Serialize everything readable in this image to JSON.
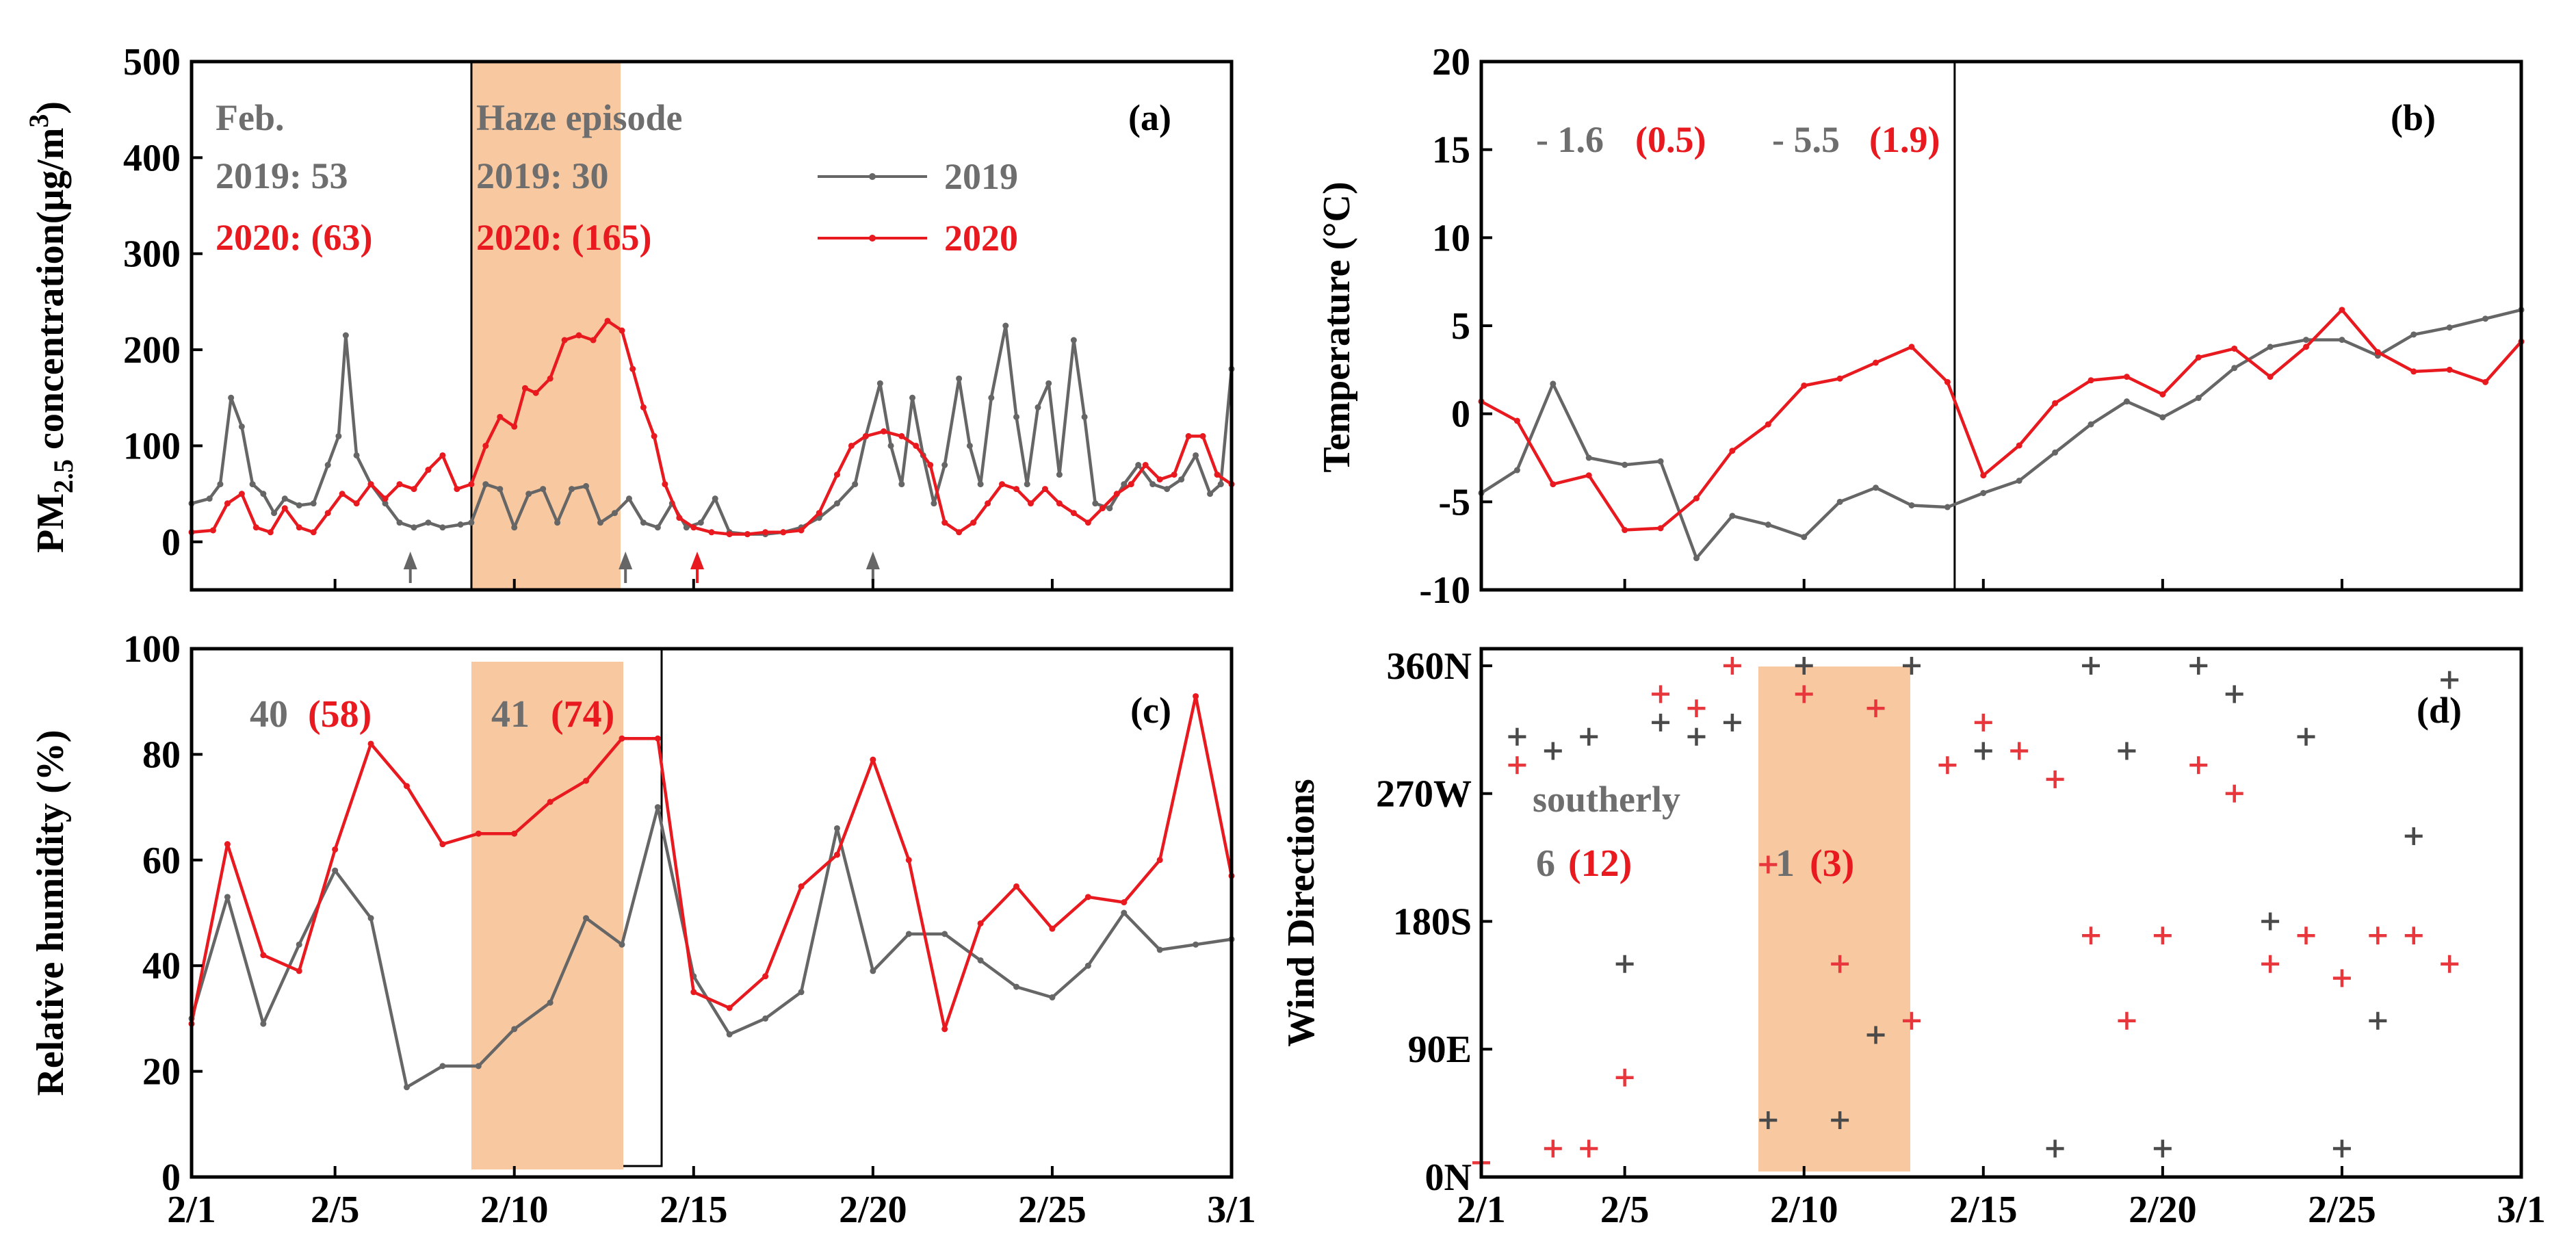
{
  "colors": {
    "y2019": "#666666",
    "y2020": "#e8191f",
    "haze": "#f8c9a0",
    "text2019": "#6e6e6e",
    "text2020": "#e8191f",
    "axis": "#000000"
  },
  "legend": {
    "y2019": "2019",
    "y2020": "2020"
  },
  "x_ticks": [
    {
      "label": "2/1",
      "day": 1
    },
    {
      "label": "2/5",
      "day": 5
    },
    {
      "label": "2/10",
      "day": 10
    },
    {
      "label": "2/15",
      "day": 15
    },
    {
      "label": "2/20",
      "day": 20
    },
    {
      "label": "2/25",
      "day": 25
    },
    {
      "label": "3/1",
      "day": 30
    }
  ],
  "chart_data": [
    {
      "id": "a",
      "type": "line",
      "panel_label": "(a)",
      "ylabel": "PM2.5 concentration(μg/m3)",
      "ylim": [
        -50,
        500
      ],
      "yticks": [
        0,
        100,
        200,
        300,
        400,
        500
      ],
      "xlim": [
        1,
        30
      ],
      "haze_window": [
        8.8,
        13.2
      ],
      "annotations": {
        "feb_title": "Feb.",
        "feb_2019": "2019: 53",
        "feb_2020": "2020: (63)",
        "haze_title": "Haze episode",
        "haze_2019": "2019: 30",
        "haze_2020": "2020: (165)"
      },
      "arrows": [
        {
          "day": 7.1,
          "series": "2019"
        },
        {
          "day": 13.1,
          "series": "2019"
        },
        {
          "day": 15.1,
          "series": "2020"
        },
        {
          "day": 20.0,
          "series": "2019"
        }
      ],
      "series": [
        {
          "name": "2019",
          "points": [
            [
              1,
              40
            ],
            [
              1.5,
              45
            ],
            [
              1.8,
              60
            ],
            [
              2.1,
              150
            ],
            [
              2.4,
              120
            ],
            [
              2.7,
              60
            ],
            [
              3.0,
              50
            ],
            [
              3.3,
              30
            ],
            [
              3.6,
              45
            ],
            [
              4.0,
              38
            ],
            [
              4.4,
              40
            ],
            [
              4.8,
              80
            ],
            [
              5.1,
              110
            ],
            [
              5.3,
              215
            ],
            [
              5.6,
              90
            ],
            [
              6.0,
              60
            ],
            [
              6.4,
              40
            ],
            [
              6.8,
              20
            ],
            [
              7.2,
              15
            ],
            [
              7.6,
              20
            ],
            [
              8.0,
              15
            ],
            [
              8.5,
              18
            ],
            [
              8.8,
              20
            ],
            [
              9.2,
              60
            ],
            [
              9.6,
              55
            ],
            [
              10.0,
              15
            ],
            [
              10.4,
              50
            ],
            [
              10.8,
              55
            ],
            [
              11.2,
              20
            ],
            [
              11.6,
              55
            ],
            [
              12.0,
              58
            ],
            [
              12.4,
              20
            ],
            [
              12.8,
              30
            ],
            [
              13.2,
              45
            ],
            [
              13.6,
              20
            ],
            [
              14.0,
              15
            ],
            [
              14.4,
              40
            ],
            [
              14.8,
              15
            ],
            [
              15.2,
              20
            ],
            [
              15.6,
              45
            ],
            [
              16.0,
              10
            ],
            [
              16.5,
              8
            ],
            [
              17.0,
              8
            ],
            [
              17.5,
              10
            ],
            [
              18.0,
              15
            ],
            [
              18.5,
              25
            ],
            [
              19.0,
              40
            ],
            [
              19.5,
              60
            ],
            [
              19.8,
              110
            ],
            [
              20.2,
              165
            ],
            [
              20.5,
              100
            ],
            [
              20.8,
              60
            ],
            [
              21.1,
              150
            ],
            [
              21.4,
              90
            ],
            [
              21.7,
              40
            ],
            [
              22.0,
              80
            ],
            [
              22.4,
              170
            ],
            [
              22.7,
              100
            ],
            [
              23.0,
              60
            ],
            [
              23.3,
              150
            ],
            [
              23.7,
              225
            ],
            [
              24.0,
              130
            ],
            [
              24.3,
              60
            ],
            [
              24.6,
              140
            ],
            [
              24.9,
              165
            ],
            [
              25.2,
              70
            ],
            [
              25.6,
              210
            ],
            [
              25.9,
              130
            ],
            [
              26.2,
              40
            ],
            [
              26.6,
              35
            ],
            [
              27.0,
              60
            ],
            [
              27.4,
              80
            ],
            [
              27.8,
              60
            ],
            [
              28.2,
              55
            ],
            [
              28.6,
              65
            ],
            [
              29.0,
              90
            ],
            [
              29.4,
              50
            ],
            [
              29.7,
              60
            ],
            [
              30,
              180
            ]
          ]
        },
        {
          "name": "2020",
          "points": [
            [
              1,
              10
            ],
            [
              1.6,
              12
            ],
            [
              2.0,
              40
            ],
            [
              2.4,
              50
            ],
            [
              2.8,
              15
            ],
            [
              3.2,
              10
            ],
            [
              3.6,
              35
            ],
            [
              4.0,
              15
            ],
            [
              4.4,
              10
            ],
            [
              4.8,
              30
            ],
            [
              5.2,
              50
            ],
            [
              5.6,
              40
            ],
            [
              6.0,
              60
            ],
            [
              6.4,
              45
            ],
            [
              6.8,
              60
            ],
            [
              7.2,
              55
            ],
            [
              7.6,
              75
            ],
            [
              8.0,
              90
            ],
            [
              8.4,
              55
            ],
            [
              8.8,
              60
            ],
            [
              9.2,
              100
            ],
            [
              9.6,
              130
            ],
            [
              10.0,
              120
            ],
            [
              10.3,
              160
            ],
            [
              10.6,
              155
            ],
            [
              11.0,
              170
            ],
            [
              11.4,
              210
            ],
            [
              11.8,
              215
            ],
            [
              12.2,
              210
            ],
            [
              12.6,
              230
            ],
            [
              13.0,
              220
            ],
            [
              13.3,
              180
            ],
            [
              13.6,
              140
            ],
            [
              13.9,
              110
            ],
            [
              14.2,
              60
            ],
            [
              14.6,
              25
            ],
            [
              15.0,
              15
            ],
            [
              15.5,
              10
            ],
            [
              16.0,
              8
            ],
            [
              16.5,
              8
            ],
            [
              17.0,
              10
            ],
            [
              17.5,
              10
            ],
            [
              18.0,
              12
            ],
            [
              18.5,
              30
            ],
            [
              19.0,
              70
            ],
            [
              19.4,
              100
            ],
            [
              19.8,
              110
            ],
            [
              20.3,
              115
            ],
            [
              20.8,
              110
            ],
            [
              21.2,
              100
            ],
            [
              21.6,
              80
            ],
            [
              22.0,
              20
            ],
            [
              22.4,
              10
            ],
            [
              22.8,
              20
            ],
            [
              23.2,
              40
            ],
            [
              23.6,
              60
            ],
            [
              24.0,
              55
            ],
            [
              24.4,
              40
            ],
            [
              24.8,
              55
            ],
            [
              25.2,
              40
            ],
            [
              25.6,
              30
            ],
            [
              26.0,
              20
            ],
            [
              26.4,
              35
            ],
            [
              26.8,
              50
            ],
            [
              27.2,
              60
            ],
            [
              27.6,
              80
            ],
            [
              28.0,
              65
            ],
            [
              28.4,
              70
            ],
            [
              28.8,
              110
            ],
            [
              29.2,
              110
            ],
            [
              29.6,
              70
            ],
            [
              30,
              60
            ]
          ]
        }
      ]
    },
    {
      "id": "b",
      "type": "line",
      "panel_label": "(b)",
      "ylabel": "Temperature (°C)",
      "ylim": [
        -10,
        20
      ],
      "yticks": [
        -10,
        -5,
        0,
        5,
        10,
        15,
        20
      ],
      "xlim": [
        1,
        30
      ],
      "vline_day": 14.2,
      "annotations": {
        "pre_2019": "- 1.6",
        "pre_2020": "(0.5)",
        "post_2019": "- 5.5",
        "post_2020": "(1.9)"
      },
      "series": [
        {
          "name": "2019",
          "values": [
            -4.5,
            -3.2,
            1.7,
            -2.5,
            -2.9,
            -2.7,
            -8.2,
            -5.8,
            -6.3,
            -7.0,
            -5.0,
            -4.2,
            -5.2,
            -5.3,
            -4.5,
            -3.8,
            -2.2,
            -0.6,
            0.7,
            -0.2,
            0.9,
            2.6,
            3.8,
            4.2,
            4.2,
            3.3,
            4.5,
            4.9,
            5.4,
            5.9
          ]
        },
        {
          "name": "2020",
          "values": [
            0.7,
            -0.4,
            -4.0,
            -3.5,
            -6.6,
            -6.5,
            -4.8,
            -2.1,
            -0.6,
            1.6,
            2.0,
            2.9,
            3.8,
            1.8,
            -3.5,
            -1.8,
            0.6,
            1.9,
            2.1,
            1.1,
            3.2,
            3.7,
            2.1,
            3.8,
            5.9,
            3.5,
            2.4,
            2.5,
            1.8,
            4.1
          ]
        }
      ]
    },
    {
      "id": "c",
      "type": "line",
      "panel_label": "(c)",
      "ylabel": "Relative humidity (%)",
      "ylim": [
        0,
        100
      ],
      "yticks": [
        0,
        20,
        40,
        60,
        80,
        100
      ],
      "xlim": [
        1,
        30
      ],
      "haze_window": [
        8.8,
        13.2
      ],
      "annotations": {
        "pre_2019": "40",
        "pre_2020": "(58)",
        "haze_2019": "41",
        "haze_2020": "(74)"
      },
      "series": [
        {
          "name": "2019",
          "values": [
            30,
            53,
            29,
            44,
            58,
            49,
            17,
            21,
            21,
            28,
            33,
            49,
            44,
            70,
            38,
            27,
            30,
            35,
            66,
            39,
            46,
            46,
            41,
            36,
            34,
            40,
            50,
            43,
            44,
            45
          ]
        },
        {
          "name": "2020",
          "values": [
            29,
            63,
            42,
            39,
            62,
            82,
            74,
            63,
            65,
            65,
            71,
            75,
            83,
            83,
            35,
            32,
            38,
            55,
            61,
            79,
            60,
            28,
            48,
            55,
            47,
            53,
            52,
            60,
            91,
            57
          ]
        }
      ]
    },
    {
      "id": "d",
      "type": "scatter",
      "panel_label": "(d)",
      "ylabel": "Wind Directions",
      "ylim": [
        0,
        372
      ],
      "xlim": [
        1,
        30
      ],
      "yticks": [
        {
          "value": 0,
          "label": "0N"
        },
        {
          "value": 90,
          "label": "90E"
        },
        {
          "value": 180,
          "label": "180S"
        },
        {
          "value": 270,
          "label": "270W"
        },
        {
          "value": 360,
          "label": "360N"
        }
      ],
      "haze_window": [
        8.8,
        13.2
      ],
      "annotations": {
        "southerly": "southerly",
        "pre_2019": "6",
        "pre_2020": "(12)",
        "haze_2019": "1",
        "haze_2020": "(3)"
      },
      "series": [
        {
          "name": "2019",
          "points": [
            [
              2,
              310
            ],
            [
              3,
              300
            ],
            [
              4,
              310
            ],
            [
              5,
              150
            ],
            [
              6,
              320
            ],
            [
              7,
              310
            ],
            [
              8,
              320
            ],
            [
              9,
              40
            ],
            [
              10,
              360
            ],
            [
              11,
              40
            ],
            [
              12,
              100
            ],
            [
              13,
              360
            ],
            [
              15,
              300
            ],
            [
              17,
              20
            ],
            [
              18,
              360
            ],
            [
              19,
              300
            ],
            [
              20,
              20
            ],
            [
              21,
              360
            ],
            [
              22,
              340
            ],
            [
              23,
              180
            ],
            [
              24,
              310
            ],
            [
              25,
              20
            ],
            [
              26,
              110
            ],
            [
              27,
              240
            ],
            [
              28,
              350
            ]
          ]
        },
        {
          "name": "2020",
          "points": [
            [
              1,
              10
            ],
            [
              2,
              290
            ],
            [
              3,
              20
            ],
            [
              4,
              20
            ],
            [
              5,
              70
            ],
            [
              6,
              340
            ],
            [
              7,
              330
            ],
            [
              8,
              360
            ],
            [
              9,
              220
            ],
            [
              10,
              340
            ],
            [
              11,
              150
            ],
            [
              12,
              330
            ],
            [
              13,
              110
            ],
            [
              14,
              290
            ],
            [
              15,
              320
            ],
            [
              16,
              300
            ],
            [
              17,
              280
            ],
            [
              18,
              170
            ],
            [
              19,
              110
            ],
            [
              20,
              170
            ],
            [
              21,
              290
            ],
            [
              22,
              270
            ],
            [
              23,
              150
            ],
            [
              24,
              170
            ],
            [
              25,
              140
            ],
            [
              26,
              170
            ],
            [
              27,
              170
            ],
            [
              28,
              150
            ]
          ]
        }
      ]
    }
  ]
}
